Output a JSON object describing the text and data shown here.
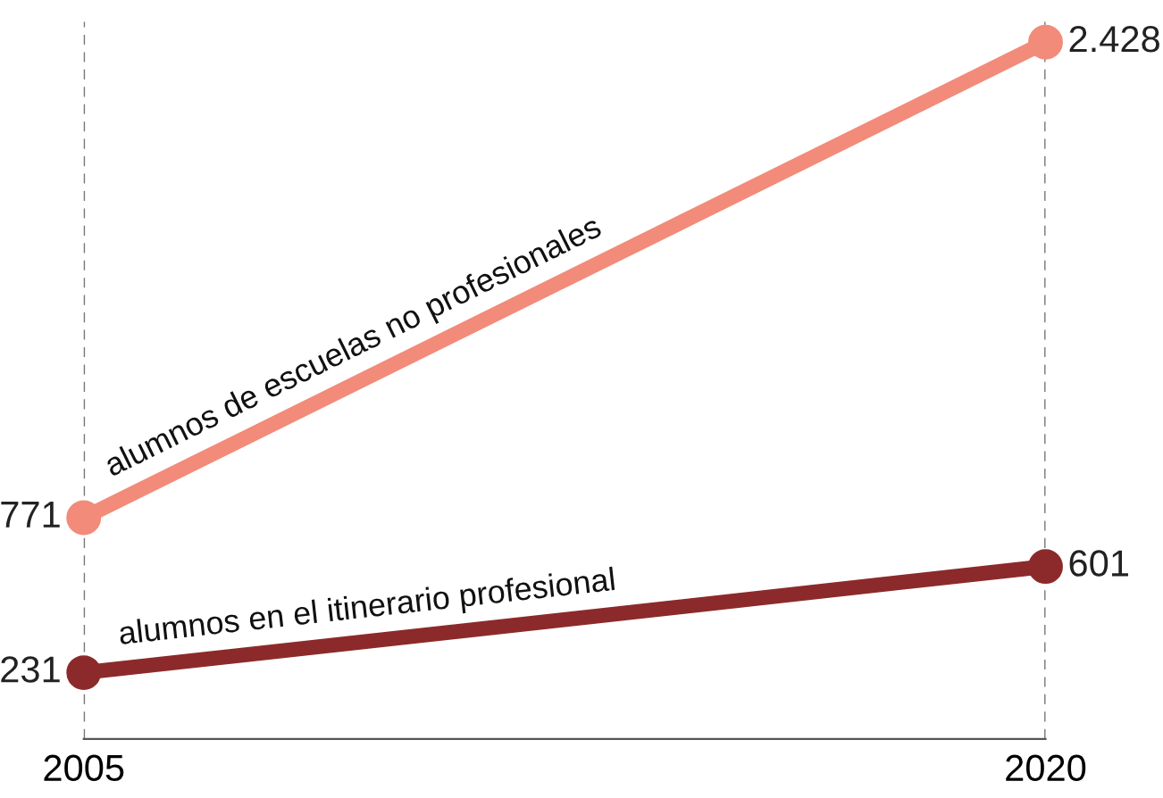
{
  "chart_data": {
    "type": "line",
    "x": [
      2005,
      2020
    ],
    "xlim": [
      2005,
      2020
    ],
    "xticks": [
      2005,
      2020
    ],
    "ylim": [
      0,
      2500
    ],
    "grid": "x",
    "tick_labels": "x",
    "marker": "circle",
    "line_style": "solid",
    "series": [
      {
        "name": "alumnos de escuelas no profesionales",
        "color": "#f28b7a",
        "values": [
          771,
          2428
        ],
        "value_labels": [
          "771",
          "2.428"
        ]
      },
      {
        "name": "alumnos en el itinerario profesional",
        "color": "#8c2a2b",
        "values": [
          231,
          601
        ],
        "value_labels": [
          "231",
          "601"
        ]
      }
    ]
  }
}
